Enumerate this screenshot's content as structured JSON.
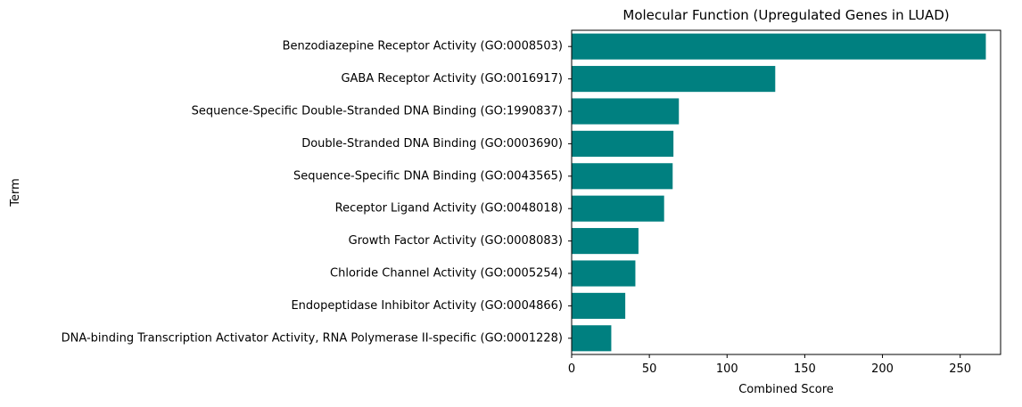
{
  "chart_data": {
    "type": "bar",
    "orientation": "horizontal",
    "title": "Molecular Function (Upregulated Genes in LUAD)",
    "xlabel": "Combined Score",
    "ylabel": "Term",
    "categories": [
      "Benzodiazepine Receptor Activity (GO:0008503)",
      "GABA Receptor Activity (GO:0016917)",
      "Sequence-Specific Double-Stranded DNA Binding (GO:1990837)",
      "Double-Stranded DNA Binding (GO:0003690)",
      "Sequence-Specific DNA Binding (GO:0043565)",
      "Receptor Ligand Activity (GO:0048018)",
      "Growth Factor Activity (GO:0008083)",
      "Chloride Channel Activity (GO:0005254)",
      "Endopeptidase Inhibitor Activity (GO:0004866)",
      "DNA-binding Transcription Activator Activity, RNA Polymerase II-specific (GO:0001228)"
    ],
    "values": [
      266.5,
      131,
      69,
      65.5,
      65,
      59.5,
      43,
      41,
      34.5,
      25.5
    ],
    "xlim": [
      0,
      276
    ],
    "xticks": [
      0,
      50,
      100,
      150,
      200,
      250
    ],
    "grid": false,
    "bar_color": "#008080"
  }
}
